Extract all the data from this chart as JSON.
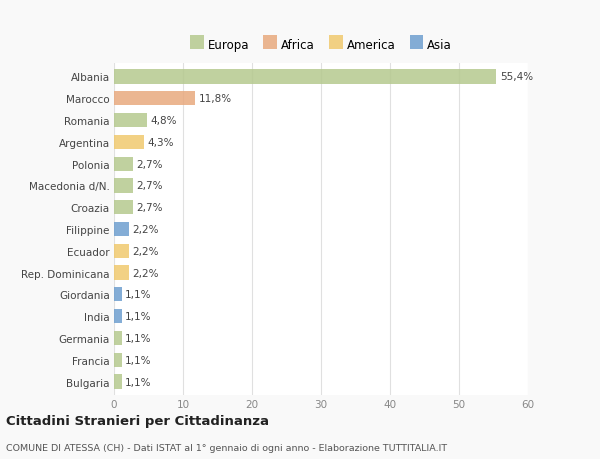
{
  "countries": [
    "Albania",
    "Marocco",
    "Romania",
    "Argentina",
    "Polonia",
    "Macedonia d/N.",
    "Croazia",
    "Filippine",
    "Ecuador",
    "Rep. Dominicana",
    "Giordania",
    "India",
    "Germania",
    "Francia",
    "Bulgaria"
  ],
  "values": [
    55.4,
    11.8,
    4.8,
    4.3,
    2.7,
    2.7,
    2.7,
    2.2,
    2.2,
    2.2,
    1.1,
    1.1,
    1.1,
    1.1,
    1.1
  ],
  "labels": [
    "55,4%",
    "11,8%",
    "4,8%",
    "4,3%",
    "2,7%",
    "2,7%",
    "2,7%",
    "2,2%",
    "2,2%",
    "2,2%",
    "1,1%",
    "1,1%",
    "1,1%",
    "1,1%",
    "1,1%"
  ],
  "continents": [
    "Europa",
    "Africa",
    "Europa",
    "America",
    "Europa",
    "Europa",
    "Europa",
    "Asia",
    "America",
    "America",
    "Asia",
    "Asia",
    "Europa",
    "Europa",
    "Europa"
  ],
  "colors": {
    "Europa": "#b5c98e",
    "Africa": "#e8a97e",
    "America": "#f0c96e",
    "Asia": "#6e9fcf"
  },
  "legend_order": [
    "Europa",
    "Africa",
    "America",
    "Asia"
  ],
  "legend_colors": [
    "#b5c98e",
    "#e8a97e",
    "#f0c96e",
    "#6e9fcf"
  ],
  "xlim": [
    0,
    60
  ],
  "xticks": [
    0,
    10,
    20,
    30,
    40,
    50,
    60
  ],
  "title": "Cittadini Stranieri per Cittadinanza",
  "subtitle": "COMUNE DI ATESSA (CH) - Dati ISTAT al 1° gennaio di ogni anno - Elaborazione TUTTITALIA.IT",
  "background_color": "#f9f9f9",
  "plot_bg_color": "#ffffff",
  "grid_color": "#e0e0e0",
  "label_fontsize": 7.5,
  "tick_fontsize": 7.5,
  "legend_fontsize": 8.5
}
